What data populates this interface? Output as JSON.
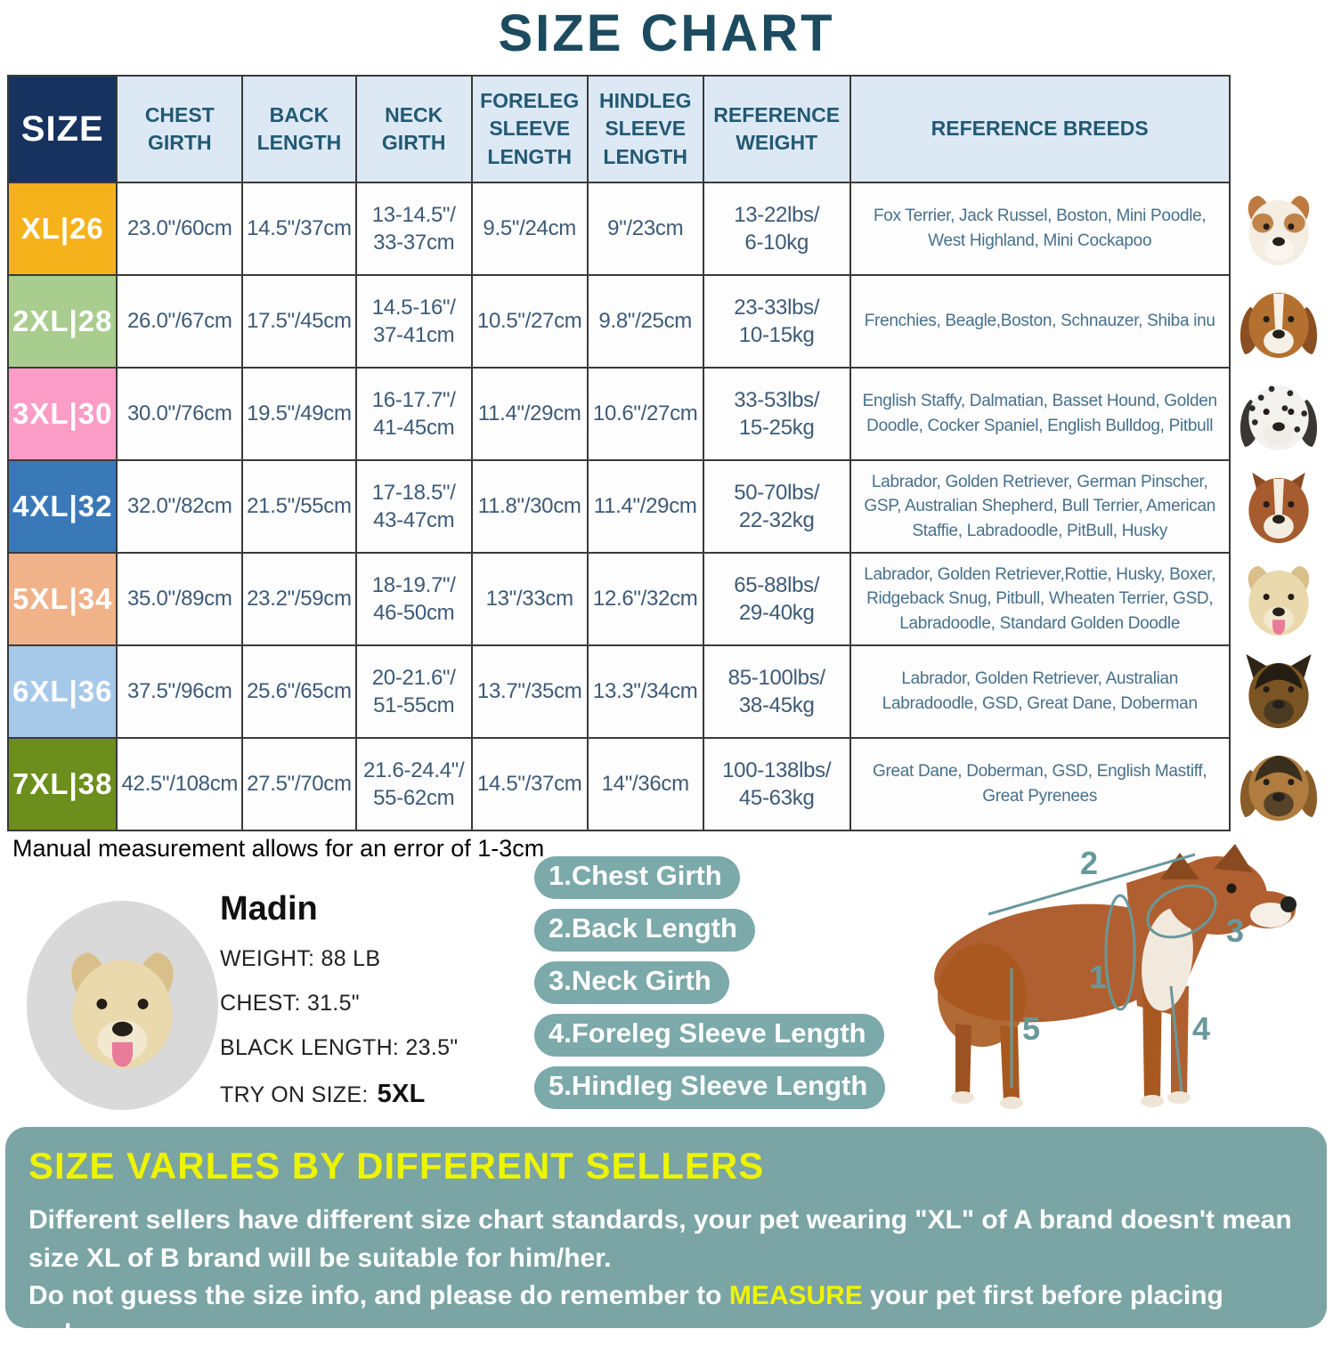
{
  "title": "SIZE CHART",
  "colors": {
    "title_text": "#1C4B60",
    "header_bg": "#DCE9F5",
    "header_text": "#235973",
    "size_header_bg": "#16325F",
    "cell_text": "#3D5A77",
    "breeds_text": "#47708B",
    "pill_teal": "#7CA9A9",
    "bottom_bg": "#7BA4A4",
    "highlight_yellow": "#EDF400",
    "diagram_line_teal": "#68989B"
  },
  "table": {
    "headers": [
      "SIZE",
      "CHEST\nGIRTH",
      "BACK\nLENGTH",
      "NECK\nGIRTH",
      "FORELEG\nSLEEVE\nLENGTH",
      "HINDLEG\nSLEEVE\nLENGTH",
      "REFERENCE\nWEIGHT",
      "REFERENCE  BREEDS"
    ],
    "rows": [
      {
        "size": "XL|26",
        "color": "#F6B21B",
        "chest": "23.0\"/60cm",
        "back": "14.5\"/37cm",
        "neck": "13-14.5\"/\n33-37cm",
        "foreleg": "9.5\"/24cm",
        "hindleg": "9\"/23cm",
        "weight": "13-22lbs/\n6-10kg",
        "breeds": "Fox Terrier, Jack Russel, Boston, Mini Poodle, West Highland, Mini Cockapoo"
      },
      {
        "size": "2XL|28",
        "color": "#A9CD8F",
        "chest": "26.0\"/67cm",
        "back": "17.5\"/45cm",
        "neck": "14.5-16\"/\n37-41cm",
        "foreleg": "10.5\"/27cm",
        "hindleg": "9.8\"/25cm",
        "weight": "23-33lbs/\n10-15kg",
        "breeds": "Frenchies, Beagle,Boston, Schnauzer, Shiba inu"
      },
      {
        "size": "3XL|30",
        "color": "#FB9DC6",
        "chest": "30.0\"/76cm",
        "back": "19.5\"/49cm",
        "neck": "16-17.7\"/\n41-45cm",
        "foreleg": "11.4\"/29cm",
        "hindleg": "10.6\"/27cm",
        "weight": "33-53lbs/\n15-25kg",
        "breeds": "English Staffy, Dalmatian, Basset Hound, Golden Doodle, Cocker Spaniel, English Bulldog, Pitbull"
      },
      {
        "size": "4XL|32",
        "color": "#3A79B8",
        "chest": "32.0\"/82cm",
        "back": "21.5\"/55cm",
        "neck": "17-18.5\"/\n43-47cm",
        "foreleg": "11.8\"/30cm",
        "hindleg": "11.4\"/29cm",
        "weight": "50-70lbs/\n22-32kg",
        "breeds": "Labrador, Golden Retriever, German Pinscher, GSP, Australian Shepherd, Bull Terrier, American Staffie, Labradoodle, PitBull, Husky"
      },
      {
        "size": "5XL|34",
        "color": "#F0B289",
        "chest": "35.0\"/89cm",
        "back": "23.2\"/59cm",
        "neck": "18-19.7\"/\n46-50cm",
        "foreleg": "13\"/33cm",
        "hindleg": "12.6\"/32cm",
        "weight": "65-88lbs/\n29-40kg",
        "breeds": "Labrador, Golden Retriever,Rottie, Husky, Boxer, Ridgeback Snug, Pitbull, Wheaten Terrier, GSD, Labradoodle,  Standard Golden Doodle"
      },
      {
        "size": "6XL|36",
        "color": "#A7C9E9",
        "chest": "37.5\"/96cm",
        "back": "25.6\"/65cm",
        "neck": "20-21.6\"/\n51-55cm",
        "foreleg": "13.7\"/35cm",
        "hindleg": "13.3\"/34cm",
        "weight": "85-100lbs/\n38-45kg",
        "breeds": "Labrador, Golden Retriever, Australian Labradoodle, GSD, Great Dane, Doberman"
      },
      {
        "size": "7XL|38",
        "color": "#6C8E1D",
        "chest": "42.5\"/108cm",
        "back": "27.5\"/70cm",
        "neck": "21.6-24.4\"/\n55-62cm",
        "foreleg": "14.5\"/37cm",
        "hindleg": "14\"/36cm",
        "weight": "100-138lbs/\n45-63kg",
        "breeds": "Great Dane, Doberman, GSD, English Mastiff, Great Pyrenees"
      }
    ]
  },
  "dog_photos": [
    {
      "name": "jack-russell-photo",
      "head": "#F3EDE2",
      "ear": "#BE7A40",
      "muzzle": "#FAF6EF",
      "patch": "#C08448",
      "ears": "fold"
    },
    {
      "name": "beagle-photo",
      "head": "#B4702F",
      "ear": "#8A4F22",
      "muzzle": "#F6F0E6",
      "blaze": "#F6F0E6",
      "ears": "drop"
    },
    {
      "name": "dalmatian-photo",
      "head": "#F4F2EE",
      "ear": "#3A3632",
      "muzzle": "#F0EDE8",
      "spots": true,
      "ears": "drop"
    },
    {
      "name": "amstaff-photo",
      "head": "#A65C2E",
      "ear": "#8A4A22",
      "muzzle": "#F3ECE1",
      "blaze": "#F3ECE1",
      "ears": "crop"
    },
    {
      "name": "labrador-photo",
      "head": "#EAD9AD",
      "ear": "#D9BF8A",
      "muzzle": "#F2E8CF",
      "tongue": "#E87A9A",
      "ears": "fold"
    },
    {
      "name": "german-shepherd-photo",
      "head": "#7A5423",
      "ear": "#2E2417",
      "muzzle": "#4A3A22",
      "mask": "#241D12",
      "ears": "erect"
    },
    {
      "name": "great-dane-photo",
      "head": "#B07C3F",
      "ear": "#8A5C2A",
      "muzzle": "#574327",
      "mask": "#3A2E1C",
      "ears": "drop"
    }
  ],
  "note": "Manual measurement allows for an error of 1-3cm",
  "model_dog": {
    "name": "Madin",
    "weight": "WEIGHT: 88 LB",
    "chest": "CHEST: 31.5\"",
    "back_length": "BLACK LENGTH: 23.5\"",
    "try_on_label": "TRY ON SIZE:",
    "try_on_value": "5XL",
    "photo": {
      "name": "madin-labrador-photo",
      "head": "#EAD9AD",
      "ear": "#D9BF8A",
      "muzzle": "#F2E8CF",
      "tongue": "#E87A9A",
      "ears": "fold"
    }
  },
  "measure_steps": [
    "1.Chest Girth",
    "2.Back Length",
    "3.Neck Girth",
    "4.Foreleg Sleeve Length",
    "5.Hindleg Sleeve Length"
  ],
  "diagram_labels": [
    "1",
    "2",
    "3",
    "4",
    "5"
  ],
  "bottom": {
    "title": "SIZE VARLES BY DIFFERENT SELLERS",
    "line1": "Different sellers have different size chart standards, your pet wearing \"XL\" of A brand doesn't mean size XL of B brand will be suitable for him/her.",
    "line2_before": "Do not guess the size info, and please do remember to ",
    "line2_highlight": "MEASURE",
    "line2_after": " your pet first before placing order."
  }
}
